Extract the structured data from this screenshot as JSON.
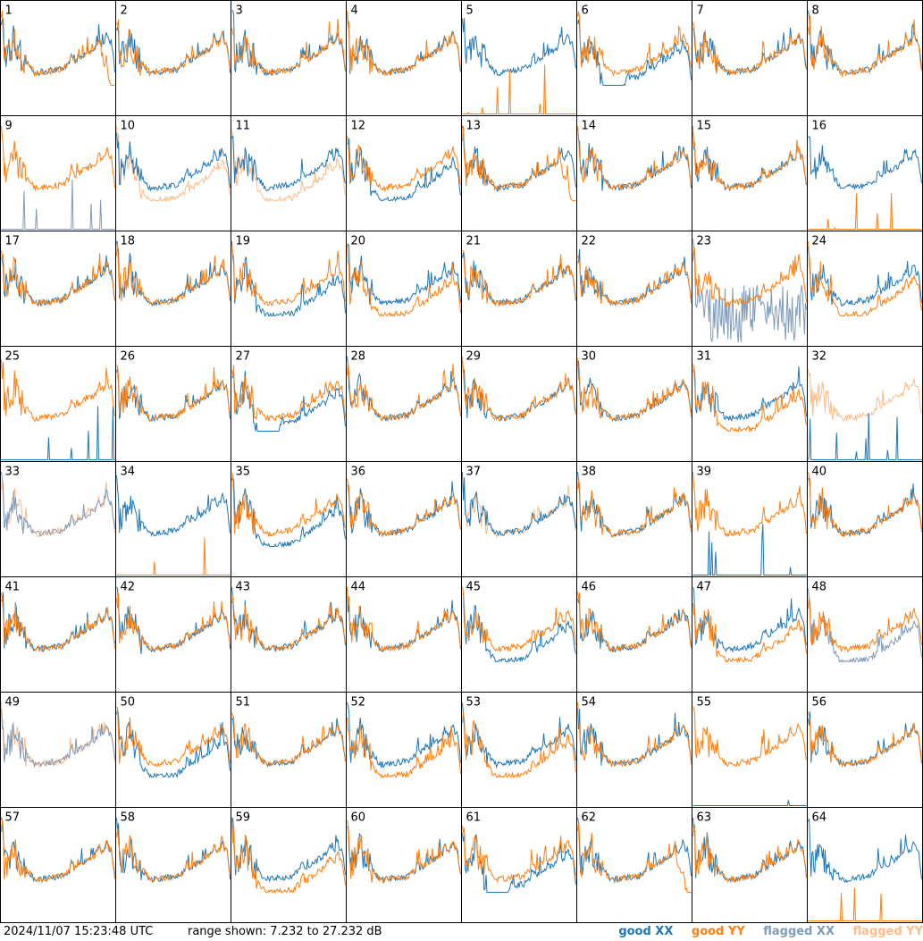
{
  "footer": {
    "timestamp": "2024/11/07 15:23:48 UTC",
    "range_text": "range shown: 7.232 to 27.232 dB"
  },
  "legend": [
    {
      "label": "good XX",
      "color": "#1f77b4"
    },
    {
      "label": "good YY",
      "color": "#ff7f0e"
    },
    {
      "label": "flagged XX",
      "color": "#7f9bb8"
    },
    {
      "label": "flagged YY",
      "color": "#ffbb88"
    }
  ],
  "chart_data": {
    "type": "line",
    "title": "",
    "ylim": [
      7.232,
      27.232
    ],
    "y_unit": "dB",
    "grid": false,
    "legend_position": "bottom-right",
    "tiles": [
      {
        "label": "1",
        "xx": "good",
        "yy": "good",
        "yy_shape": "drop"
      },
      {
        "label": "2",
        "xx": "good",
        "yy": "good"
      },
      {
        "label": "3",
        "xx": "good",
        "yy": "good"
      },
      {
        "label": "4",
        "xx": "good",
        "yy": "good"
      },
      {
        "label": "5",
        "xx": "good",
        "yy": "good",
        "yy_shape": "dead"
      },
      {
        "label": "6",
        "xx": "good",
        "yy": "good",
        "xx_shape": "dip"
      },
      {
        "label": "7",
        "xx": "good",
        "yy": "good"
      },
      {
        "label": "8",
        "xx": "good",
        "yy": "good"
      },
      {
        "label": "9",
        "xx": "flagged",
        "yy": "good",
        "xx_shape": "dead"
      },
      {
        "label": "10",
        "xx": "good",
        "yy": "flagged",
        "yy_shape": "low"
      },
      {
        "label": "11",
        "xx": "good",
        "yy": "flagged",
        "yy_shape": "low"
      },
      {
        "label": "12",
        "xx": "good",
        "yy": "good",
        "xx_shape": "low"
      },
      {
        "label": "13",
        "xx": "good",
        "yy": "good",
        "yy_shape": "drop"
      },
      {
        "label": "14",
        "xx": "good",
        "yy": "good"
      },
      {
        "label": "15",
        "xx": "good",
        "yy": "good"
      },
      {
        "label": "16",
        "xx": "good",
        "yy": "good",
        "yy_shape": "dead"
      },
      {
        "label": "17",
        "xx": "good",
        "yy": "good"
      },
      {
        "label": "18",
        "xx": "good",
        "yy": "good"
      },
      {
        "label": "19",
        "xx": "good",
        "yy": "good",
        "xx_shape": "low"
      },
      {
        "label": "20",
        "xx": "good",
        "yy": "good",
        "yy_shape": "low"
      },
      {
        "label": "21",
        "xx": "good",
        "yy": "good"
      },
      {
        "label": "22",
        "xx": "good",
        "yy": "good"
      },
      {
        "label": "23",
        "xx": "flagged",
        "yy": "good",
        "xx_shape": "noise"
      },
      {
        "label": "24",
        "xx": "good",
        "yy": "good",
        "yy_shape": "low"
      },
      {
        "label": "25",
        "xx": "good",
        "yy": "good",
        "xx_shape": "dead"
      },
      {
        "label": "26",
        "xx": "good",
        "yy": "good"
      },
      {
        "label": "27",
        "xx": "good",
        "yy": "good",
        "xx_shape": "dip"
      },
      {
        "label": "28",
        "xx": "good",
        "yy": "good"
      },
      {
        "label": "29",
        "xx": "good",
        "yy": "good"
      },
      {
        "label": "30",
        "xx": "good",
        "yy": "good"
      },
      {
        "label": "31",
        "xx": "good",
        "yy": "good",
        "yy_shape": "low"
      },
      {
        "label": "32",
        "xx": "good",
        "yy": "flagged",
        "xx_shape": "dead"
      },
      {
        "label": "33",
        "xx": "flagged",
        "yy": "flagged"
      },
      {
        "label": "34",
        "xx": "good",
        "yy": "good",
        "yy_shape": "dead"
      },
      {
        "label": "35",
        "xx": "good",
        "yy": "good",
        "xx_shape": "low"
      },
      {
        "label": "36",
        "xx": "good",
        "yy": "good"
      },
      {
        "label": "37",
        "xx": "good",
        "yy": "flagged"
      },
      {
        "label": "38",
        "xx": "good",
        "yy": "good"
      },
      {
        "label": "39",
        "xx": "good",
        "yy": "good",
        "xx_shape": "dead"
      },
      {
        "label": "40",
        "xx": "good",
        "yy": "good"
      },
      {
        "label": "41",
        "xx": "good",
        "yy": "good"
      },
      {
        "label": "42",
        "xx": "good",
        "yy": "good"
      },
      {
        "label": "43",
        "xx": "good",
        "yy": "good"
      },
      {
        "label": "44",
        "xx": "good",
        "yy": "good"
      },
      {
        "label": "45",
        "xx": "good",
        "yy": "good",
        "xx_shape": "low"
      },
      {
        "label": "46",
        "xx": "good",
        "yy": "good"
      },
      {
        "label": "47",
        "xx": "good",
        "yy": "good",
        "yy_shape": "low"
      },
      {
        "label": "48",
        "xx": "flagged",
        "yy": "good",
        "xx_shape": "low"
      },
      {
        "label": "49",
        "xx": "flagged",
        "yy": "flagged"
      },
      {
        "label": "50",
        "xx": "good",
        "yy": "good",
        "xx_shape": "low"
      },
      {
        "label": "51",
        "xx": "good",
        "yy": "good"
      },
      {
        "label": "52",
        "xx": "good",
        "yy": "good",
        "yy_shape": "low"
      },
      {
        "label": "53",
        "xx": "good",
        "yy": "good",
        "yy_shape": "low"
      },
      {
        "label": "54",
        "xx": "good",
        "yy": "good"
      },
      {
        "label": "55",
        "xx": "good",
        "yy": "good",
        "xx_shape": "dead"
      },
      {
        "label": "56",
        "xx": "good",
        "yy": "good"
      },
      {
        "label": "57",
        "xx": "good",
        "yy": "good"
      },
      {
        "label": "58",
        "xx": "good",
        "yy": "good"
      },
      {
        "label": "59",
        "xx": "good",
        "yy": "good",
        "yy_shape": "low"
      },
      {
        "label": "60",
        "xx": "good",
        "yy": "good"
      },
      {
        "label": "61",
        "xx": "good",
        "yy": "good",
        "xx_shape": "dip"
      },
      {
        "label": "62",
        "xx": "good",
        "yy": "good",
        "yy_shape": "drop"
      },
      {
        "label": "63",
        "xx": "good",
        "yy": "good"
      },
      {
        "label": "64",
        "xx": "good",
        "yy": "good",
        "yy_shape": "dead"
      }
    ]
  }
}
